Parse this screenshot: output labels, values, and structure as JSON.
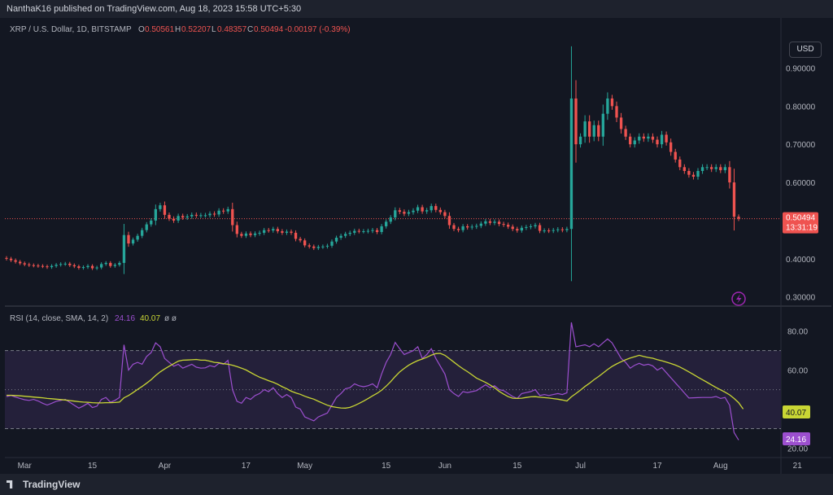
{
  "header": {
    "publisher": "NanthaK16 published on TradingView.com, Aug 18, 2023 15:58 UTC+5:30"
  },
  "legend": {
    "symbol": "XRP / U.S. Dollar, 1D, BITSTAMP",
    "o_label": "O",
    "o": "0.50561",
    "h_label": "H",
    "h": "0.52207",
    "l_label": "L",
    "l": "0.48357",
    "c_label": "C",
    "c": "0.50494",
    "change": "-0.00197 (-0.39%)"
  },
  "currency_button": "USD",
  "price_tag": {
    "value": "0.50494",
    "countdown": "13:31:19"
  },
  "rsi": {
    "title": "RSI (14, close, SMA, 14, 2)",
    "rsi_value": "24.16",
    "sma_value": "40.07",
    "extras": "ø ø"
  },
  "footer": {
    "brand": "TradingView"
  },
  "colors": {
    "up": "#26a69a",
    "down": "#ef5350",
    "rsi": "#9c4fcf",
    "sma": "#c9d634",
    "band_fill": "#24203a",
    "background": "#131722"
  },
  "chart_data": [
    {
      "type": "candlestick",
      "title": "XRP / U.S. Dollar, 1D, BITSTAMP",
      "ylim": [
        0.28,
        0.98
      ],
      "y_ticks": [
        "0.90000",
        "0.80000",
        "0.70000",
        "0.60000",
        "0.40000",
        "0.30000"
      ],
      "x_ticks": [
        "Mar",
        "15",
        "Apr",
        "17",
        "May",
        "15",
        "Jun",
        "15",
        "Jul",
        "17",
        "Aug",
        "21"
      ],
      "last_price": 0.50494,
      "closes": [
        0.4,
        0.396,
        0.392,
        0.388,
        0.385,
        0.383,
        0.382,
        0.381,
        0.38,
        0.378,
        0.381,
        0.384,
        0.386,
        0.387,
        0.383,
        0.38,
        0.376,
        0.378,
        0.381,
        0.375,
        0.377,
        0.386,
        0.389,
        0.381,
        0.384,
        0.389,
        0.462,
        0.44,
        0.45,
        0.46,
        0.475,
        0.49,
        0.5,
        0.53,
        0.54,
        0.515,
        0.505,
        0.5,
        0.512,
        0.508,
        0.511,
        0.515,
        0.513,
        0.514,
        0.514,
        0.518,
        0.516,
        0.526,
        0.524,
        0.53,
        0.488,
        0.465,
        0.46,
        0.466,
        0.462,
        0.466,
        0.468,
        0.475,
        0.474,
        0.478,
        0.472,
        0.468,
        0.471,
        0.468,
        0.452,
        0.448,
        0.435,
        0.432,
        0.428,
        0.431,
        0.432,
        0.434,
        0.445,
        0.455,
        0.46,
        0.465,
        0.468,
        0.473,
        0.472,
        0.472,
        0.473,
        0.475,
        0.47,
        0.485,
        0.497,
        0.508,
        0.527,
        0.523,
        0.518,
        0.522,
        0.526,
        0.535,
        0.524,
        0.527,
        0.538,
        0.528,
        0.522,
        0.512,
        0.488,
        0.478,
        0.475,
        0.485,
        0.482,
        0.484,
        0.486,
        0.492,
        0.498,
        0.494,
        0.497,
        0.491,
        0.489,
        0.484,
        0.478,
        0.474,
        0.481,
        0.483,
        0.485,
        0.488,
        0.473,
        0.474,
        0.473,
        0.475,
        0.477,
        0.475,
        0.478,
        0.82,
        0.7,
        0.72,
        0.76,
        0.72,
        0.75,
        0.72,
        0.78,
        0.82,
        0.8,
        0.77,
        0.74,
        0.72,
        0.7,
        0.71,
        0.72,
        0.715,
        0.72,
        0.712,
        0.7,
        0.725,
        0.705,
        0.68,
        0.66,
        0.64,
        0.63,
        0.62,
        0.615,
        0.63,
        0.64,
        0.64,
        0.635,
        0.64,
        0.632,
        0.64,
        0.6,
        0.51,
        0.50494
      ]
    },
    {
      "type": "line",
      "title": "RSI (14, close, SMA, 14, 2)",
      "ylim": [
        16,
        92
      ],
      "y_ticks": [
        "80.00",
        "60.00",
        "20.00"
      ],
      "bands": [
        70,
        50,
        30
      ],
      "series": [
        {
          "values": [
            46.5,
            47,
            46.2,
            45.5,
            44.8,
            44.5,
            45,
            44.2,
            43,
            42.1,
            43,
            44,
            44.5,
            45,
            43.5,
            42,
            40.5,
            41.6,
            43,
            40.8,
            41.5,
            45,
            46,
            43.5,
            44.5,
            46,
            73,
            60,
            63,
            64,
            63,
            67,
            69,
            74,
            72,
            66,
            64,
            62,
            63,
            61,
            62,
            63,
            61.5,
            61,
            61.2,
            62.3,
            61.7,
            63.5,
            63,
            65,
            50,
            44,
            43,
            46,
            45,
            47,
            48,
            50,
            49,
            51,
            48,
            46,
            47.5,
            46,
            41,
            40,
            36,
            35,
            34,
            36,
            37,
            38,
            42,
            46,
            48,
            50.5,
            51,
            53,
            52,
            51.5,
            52,
            53,
            51,
            58,
            64,
            68,
            74.2,
            71,
            68,
            69,
            70,
            72,
            66,
            68,
            71,
            66,
            62,
            58,
            50,
            48,
            46.5,
            49,
            48.5,
            49,
            49.5,
            51,
            52.5,
            51,
            52,
            50,
            49.5,
            48,
            46.5,
            45.5,
            48,
            48.5,
            49,
            50,
            47,
            47.5,
            47,
            47.5,
            48,
            47.5,
            48.4,
            84.5,
            72,
            72.5,
            73,
            72,
            73.5,
            72,
            74,
            76,
            74,
            70,
            66,
            64,
            61,
            62.5,
            63.5,
            62.5,
            63,
            62.2,
            60,
            61.3,
            58.7,
            56.1,
            53.5,
            50.9,
            48.3,
            45.7,
            45.8,
            45.9,
            46,
            46,
            46,
            46.5,
            45.5,
            46,
            42,
            28,
            24.16
          ]
        },
        {
          "values": [
            47.1,
            47.1,
            47.0,
            46.8,
            46.6,
            46.4,
            46.2,
            46.0,
            45.8,
            45.5,
            45.3,
            45.1,
            44.9,
            44.7,
            44.4,
            44.1,
            43.8,
            43.6,
            43.5,
            43.3,
            43.2,
            43.2,
            43.3,
            43.3,
            43.4,
            43.6,
            45.8,
            47.0,
            48.5,
            50.1,
            51.6,
            53.3,
            55.1,
            57.2,
            59.1,
            60.6,
            62.0,
            63.3,
            64.6,
            65.1,
            65.2,
            65.3,
            65.5,
            65.1,
            65.1,
            64.6,
            64.0,
            63.8,
            63.3,
            63.0,
            62.5,
            61.8,
            61.0,
            60.1,
            58.8,
            57.5,
            56.4,
            55.5,
            54.6,
            53.8,
            52.8,
            51.5,
            50.5,
            49.2,
            48.3,
            47.6,
            46.6,
            45.8,
            45.1,
            44.0,
            43.0,
            42.0,
            41.3,
            40.9,
            40.6,
            40.5,
            40.9,
            41.8,
            42.9,
            44.1,
            45.4,
            46.8,
            48.1,
            49.7,
            51.8,
            54.1,
            56.7,
            59.1,
            60.9,
            62.5,
            63.8,
            64.9,
            65.7,
            66.6,
            67.7,
            68.5,
            68.6,
            67.6,
            65.9,
            64.1,
            62.3,
            60.7,
            59.2,
            57.6,
            55.9,
            54.8,
            53.7,
            52.4,
            50.9,
            49.1,
            47.7,
            46.4,
            45.6,
            45.5,
            45.6,
            46.0,
            46.3,
            46.4,
            46.1,
            45.9,
            45.7,
            45.4,
            45.1,
            44.7,
            44.2,
            46.3,
            48.0,
            49.8,
            51.6,
            53.3,
            55.1,
            56.7,
            58.5,
            60.3,
            61.9,
            63.2,
            64.3,
            65.3,
            66.2,
            66.9,
            67.6,
            67.0,
            66.5,
            66.1,
            65.4,
            64.8,
            64.1,
            63.4,
            62.6,
            61.6,
            60.4,
            59.1,
            57.8,
            56.4,
            55.1,
            53.8,
            52.4,
            51.1,
            49.9,
            48.7,
            47.3,
            45.5,
            43.3,
            40.07
          ]
        }
      ]
    }
  ]
}
